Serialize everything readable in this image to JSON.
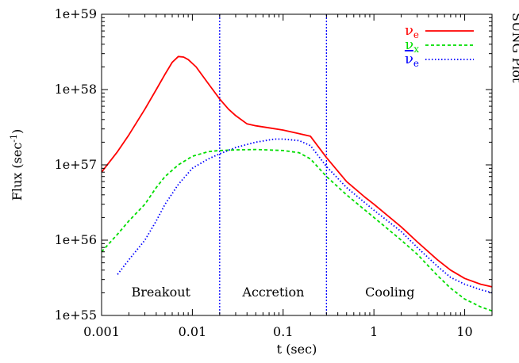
{
  "chart_data": {
    "type": "line",
    "xlabel": "t (sec)",
    "ylabel": "Flux (sec",
    "ylabel_exp": "-1",
    "ylabel_close": ")",
    "side_label": "SUNG Plot",
    "x_scale": "log",
    "y_scale": "log",
    "xlim": [
      0.001,
      20
    ],
    "ylim": [
      1e+55,
      1e+59
    ],
    "x_ticks": [
      {
        "value": 0.001,
        "label": "0.001"
      },
      {
        "value": 0.01,
        "label": "0.01"
      },
      {
        "value": 0.1,
        "label": "0.1"
      },
      {
        "value": 1,
        "label": "1"
      },
      {
        "value": 10,
        "label": "10"
      }
    ],
    "y_ticks": [
      {
        "value": 1e+55,
        "label": "1e+55"
      },
      {
        "value": 1e+56,
        "label": "1e+56"
      },
      {
        "value": 1e+57,
        "label": "1e+57"
      },
      {
        "value": 1e+58,
        "label": "1e+58"
      },
      {
        "value": 1e+59,
        "label": "1e+59"
      }
    ],
    "grid": false,
    "legend_position": "top-right",
    "phase_lines": [
      0.02,
      0.3
    ],
    "phase_line_color": "#0000ff",
    "phases": [
      {
        "label": "Breakout",
        "x": 0.0045
      },
      {
        "label": "Accretion",
        "x": 0.078
      },
      {
        "label": "Cooling",
        "x": 1.5
      }
    ],
    "series": [
      {
        "name": "ν",
        "sub": "e",
        "bar": false,
        "color": "#ff0000",
        "dash": "",
        "points": [
          [
            0.001,
            8e+56
          ],
          [
            0.0015,
            1.5e+57
          ],
          [
            0.002,
            2.5e+57
          ],
          [
            0.003,
            5.5e+57
          ],
          [
            0.004,
            1e+58
          ],
          [
            0.005,
            1.6e+58
          ],
          [
            0.006,
            2.3e+58
          ],
          [
            0.007,
            2.75e+58
          ],
          [
            0.008,
            2.7e+58
          ],
          [
            0.009,
            2.5e+58
          ],
          [
            0.011,
            2e+58
          ],
          [
            0.015,
            1.2e+58
          ],
          [
            0.02,
            7.5e+57
          ],
          [
            0.025,
            5.5e+57
          ],
          [
            0.03,
            4.5e+57
          ],
          [
            0.04,
            3.5e+57
          ],
          [
            0.05,
            3.3e+57
          ],
          [
            0.07,
            3.1e+57
          ],
          [
            0.1,
            2.9e+57
          ],
          [
            0.15,
            2.6e+57
          ],
          [
            0.2,
            2.4e+57
          ],
          [
            0.3,
            1.25e+57
          ],
          [
            0.5,
            6e+56
          ],
          [
            0.8,
            3.7e+56
          ],
          [
            1,
            3e+56
          ],
          [
            2,
            1.5e+56
          ],
          [
            3,
            9.5e+55
          ],
          [
            5,
            5.5e+55
          ],
          [
            7,
            4e+55
          ],
          [
            10,
            3.1e+55
          ],
          [
            15,
            2.6e+55
          ],
          [
            20,
            2.4e+55
          ]
        ]
      },
      {
        "name": "ν",
        "sub": "x",
        "bar": false,
        "color": "#00dd00",
        "dash": "4,3",
        "points": [
          [
            0.001,
            7e+55
          ],
          [
            0.0015,
            1.2e+56
          ],
          [
            0.002,
            1.8e+56
          ],
          [
            0.003,
            3e+56
          ],
          [
            0.004,
            5e+56
          ],
          [
            0.005,
            7e+56
          ],
          [
            0.007,
            1e+57
          ],
          [
            0.01,
            1.3e+57
          ],
          [
            0.015,
            1.5e+57
          ],
          [
            0.02,
            1.55e+57
          ],
          [
            0.03,
            1.58e+57
          ],
          [
            0.05,
            1.6e+57
          ],
          [
            0.1,
            1.55e+57
          ],
          [
            0.15,
            1.45e+57
          ],
          [
            0.2,
            1.2e+57
          ],
          [
            0.3,
            7e+56
          ],
          [
            0.5,
            4e+56
          ],
          [
            1,
            2e+56
          ],
          [
            2,
            1e+56
          ],
          [
            3,
            6.5e+55
          ],
          [
            5,
            3.4e+55
          ],
          [
            7,
            2.3e+55
          ],
          [
            10,
            1.65e+55
          ],
          [
            15,
            1.3e+55
          ],
          [
            20,
            1.15e+55
          ]
        ]
      },
      {
        "name": "ν",
        "sub": "e",
        "bar": true,
        "color": "#0000ff",
        "dash": "1.5,2.5",
        "points": [
          [
            0.0015,
            3.5e+55
          ],
          [
            0.002,
            5.5e+55
          ],
          [
            0.003,
            1e+56
          ],
          [
            0.004,
            1.8e+56
          ],
          [
            0.005,
            3e+56
          ],
          [
            0.007,
            5.5e+56
          ],
          [
            0.01,
            9e+56
          ],
          [
            0.015,
            1.2e+57
          ],
          [
            0.02,
            1.4e+57
          ],
          [
            0.03,
            1.7e+57
          ],
          [
            0.05,
            2e+57
          ],
          [
            0.08,
            2.2e+57
          ],
          [
            0.1,
            2.2e+57
          ],
          [
            0.15,
            2.1e+57
          ],
          [
            0.2,
            1.8e+57
          ],
          [
            0.3,
            9.5e+56
          ],
          [
            0.5,
            5e+56
          ],
          [
            1,
            2.5e+56
          ],
          [
            2,
            1.3e+56
          ],
          [
            3,
            8e+55
          ],
          [
            5,
            4.5e+55
          ],
          [
            7,
            3.2e+55
          ],
          [
            10,
            2.6e+55
          ],
          [
            15,
            2.2e+55
          ],
          [
            20,
            2e+55
          ]
        ]
      }
    ]
  }
}
